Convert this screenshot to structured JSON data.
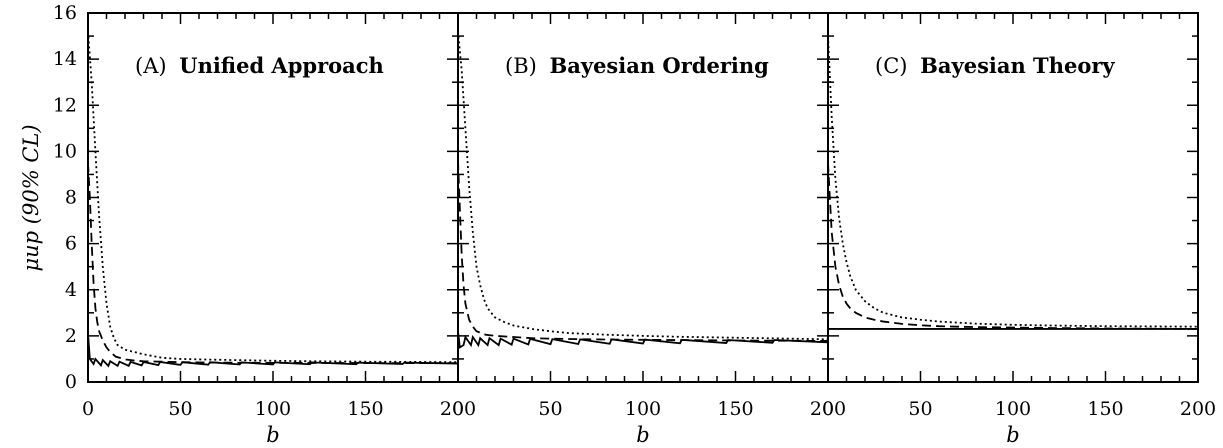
{
  "chart_data": {
    "type": "line",
    "ylabel": "μup  (90% CL)",
    "ylim": [
      0,
      16
    ],
    "yticks": [
      0,
      2,
      4,
      6,
      8,
      10,
      12,
      14,
      16
    ],
    "xlim": [
      0,
      200
    ],
    "xtick_labels": [
      "0",
      "50",
      "100",
      "150",
      "200"
    ],
    "panels": [
      {
        "label": "(A)",
        "title": "Unified Approach",
        "xlabel": "b",
        "series": [
          {
            "style": "dotted",
            "x": [
              0,
              2,
              4,
              6,
              8,
              10,
              12,
              14,
              16,
              20,
              25,
              30,
              40,
              50,
              60,
              80,
              100,
              120,
              150,
              180,
              200
            ],
            "y": [
              15.2,
              13.0,
              10.0,
              7.2,
              5.0,
              3.4,
              2.4,
              1.9,
              1.6,
              1.4,
              1.3,
              1.2,
              1.05,
              1.0,
              0.98,
              0.95,
              0.92,
              0.9,
              0.88,
              0.87,
              0.86
            ]
          },
          {
            "style": "dashed",
            "x": [
              0,
              1,
              2,
              3,
              4,
              5,
              6,
              8,
              10,
              12,
              15,
              20,
              25,
              30,
              40,
              50,
              70,
              100,
              150,
              200
            ],
            "y": [
              9.5,
              8.0,
              6.0,
              4.3,
              3.2,
              2.6,
              2.2,
              1.8,
              1.5,
              1.3,
              1.1,
              0.98,
              0.93,
              0.9,
              0.88,
              0.86,
              0.84,
              0.83,
              0.82,
              0.82
            ]
          },
          {
            "style": "solid",
            "x": [
              0,
              1,
              3,
              4,
              7,
              8,
              11,
              12,
              16,
              17,
              22,
              23,
              29,
              30,
              38,
              39,
              50,
              51,
              65,
              66,
              82,
              83,
              100,
              101,
              120,
              121,
              145,
              146,
              170,
              171,
              200
            ],
            "y": [
              2.1,
              1.0,
              0.78,
              1.0,
              0.72,
              0.95,
              0.7,
              0.9,
              0.7,
              0.88,
              0.7,
              0.87,
              0.72,
              0.87,
              0.73,
              0.87,
              0.74,
              0.86,
              0.75,
              0.86,
              0.76,
              0.85,
              0.76,
              0.85,
              0.77,
              0.85,
              0.77,
              0.84,
              0.78,
              0.84,
              0.8
            ]
          }
        ]
      },
      {
        "label": "(B)",
        "title": "Bayesian Ordering",
        "xlabel": "b",
        "series": [
          {
            "style": "dotted",
            "x": [
              0,
              2,
              4,
              6,
              8,
              10,
              12,
              14,
              16,
              20,
              25,
              30,
              40,
              50,
              60,
              80,
              100,
              120,
              150,
              180,
              200
            ],
            "y": [
              15.2,
              13.5,
              11.0,
              8.5,
              6.5,
              5.0,
              4.2,
              3.6,
              3.2,
              2.8,
              2.6,
              2.45,
              2.3,
              2.2,
              2.12,
              2.05,
              2.0,
              1.96,
              1.92,
              1.88,
              1.85
            ]
          },
          {
            "style": "dashed",
            "x": [
              0,
              1,
              2,
              3,
              4,
              6,
              8,
              10,
              15,
              20,
              30,
              40,
              50,
              70,
              100,
              150,
              200
            ],
            "y": [
              9.6,
              7.5,
              5.5,
              4.2,
              3.4,
              2.7,
              2.4,
              2.2,
              2.05,
              2.0,
              1.95,
              1.9,
              1.88,
              1.85,
              1.83,
              1.8,
              1.78
            ]
          },
          {
            "style": "solid",
            "x": [
              0,
              1,
              3,
              4,
              7,
              8,
              11,
              12,
              16,
              17,
              22,
              23,
              29,
              30,
              38,
              39,
              50,
              51,
              65,
              66,
              82,
              83,
              100,
              101,
              120,
              121,
              145,
              146,
              170,
              171,
              200
            ],
            "y": [
              2.2,
              1.5,
              1.6,
              1.95,
              1.6,
              1.95,
              1.6,
              1.9,
              1.6,
              1.9,
              1.6,
              1.88,
              1.62,
              1.88,
              1.63,
              1.87,
              1.64,
              1.86,
              1.65,
              1.85,
              1.66,
              1.85,
              1.67,
              1.84,
              1.68,
              1.83,
              1.69,
              1.82,
              1.7,
              1.82,
              1.72
            ]
          }
        ]
      },
      {
        "label": "(C)",
        "title": "Bayesian Theory",
        "xlabel": "b",
        "series": [
          {
            "style": "dotted",
            "x": [
              0,
              2,
              4,
              6,
              8,
              10,
              12,
              15,
              20,
              25,
              30,
              40,
              50,
              60,
              80,
              100,
              120,
              150,
              200
            ],
            "y": [
              15.0,
              11.5,
              8.8,
              7.1,
              6.0,
              5.2,
              4.6,
              4.0,
              3.5,
              3.2,
              3.0,
              2.8,
              2.7,
              2.62,
              2.53,
              2.48,
              2.45,
              2.42,
              2.4
            ]
          },
          {
            "style": "dashed",
            "x": [
              0,
              2,
              4,
              6,
              8,
              10,
              12,
              15,
              20,
              25,
              30,
              40,
              50,
              60,
              80,
              100,
              120,
              150,
              200
            ],
            "y": [
              9.5,
              6.5,
              5.0,
              4.2,
              3.7,
              3.4,
              3.2,
              3.0,
              2.8,
              2.7,
              2.62,
              2.52,
              2.46,
              2.42,
              2.38,
              2.36,
              2.34,
              2.32,
              2.3
            ]
          },
          {
            "style": "solid",
            "x": [
              0,
              200
            ],
            "y": [
              2.3,
              2.3
            ]
          }
        ]
      }
    ]
  }
}
